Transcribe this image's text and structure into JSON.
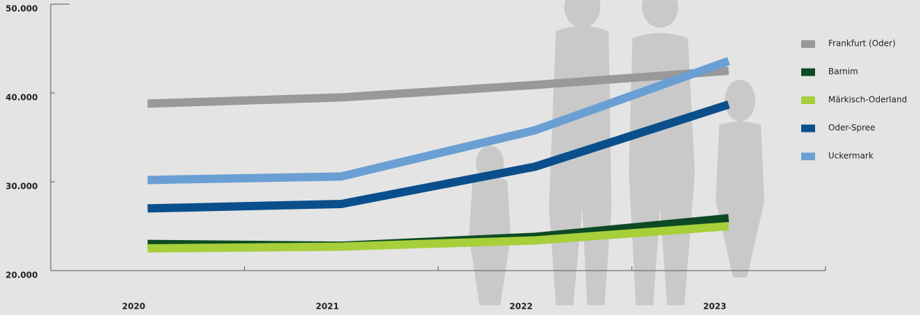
{
  "chart_data": {
    "type": "line",
    "categories": [
      "2020",
      "2021",
      "2022",
      "2023"
    ],
    "series": [
      {
        "name": "Frankfurt (Oder)",
        "color": "#999999",
        "values": [
          38800,
          39500,
          40900,
          42500
        ]
      },
      {
        "name": "Barnim",
        "color": "#0d4a24",
        "values": [
          23000,
          22800,
          23800,
          25900
        ]
      },
      {
        "name": "Märkisch-Oderland",
        "color": "#a6cf3a",
        "values": [
          22500,
          22700,
          23400,
          25000
        ]
      },
      {
        "name": "Oder-Spree",
        "color": "#0a4f8c",
        "values": [
          27000,
          27500,
          31700,
          38700
        ]
      },
      {
        "name": "Uckermark",
        "color": "#6a9fd3",
        "values": [
          30200,
          30600,
          35800,
          43600
        ]
      }
    ],
    "ylim": [
      20000,
      50000
    ],
    "yticks": [
      {
        "value": 20000,
        "label": "20.000"
      },
      {
        "value": 30000,
        "label": "30.000"
      },
      {
        "value": 40000,
        "label": "40.000"
      },
      {
        "value": 50000,
        "label": "50.000"
      }
    ],
    "legend": "right"
  }
}
